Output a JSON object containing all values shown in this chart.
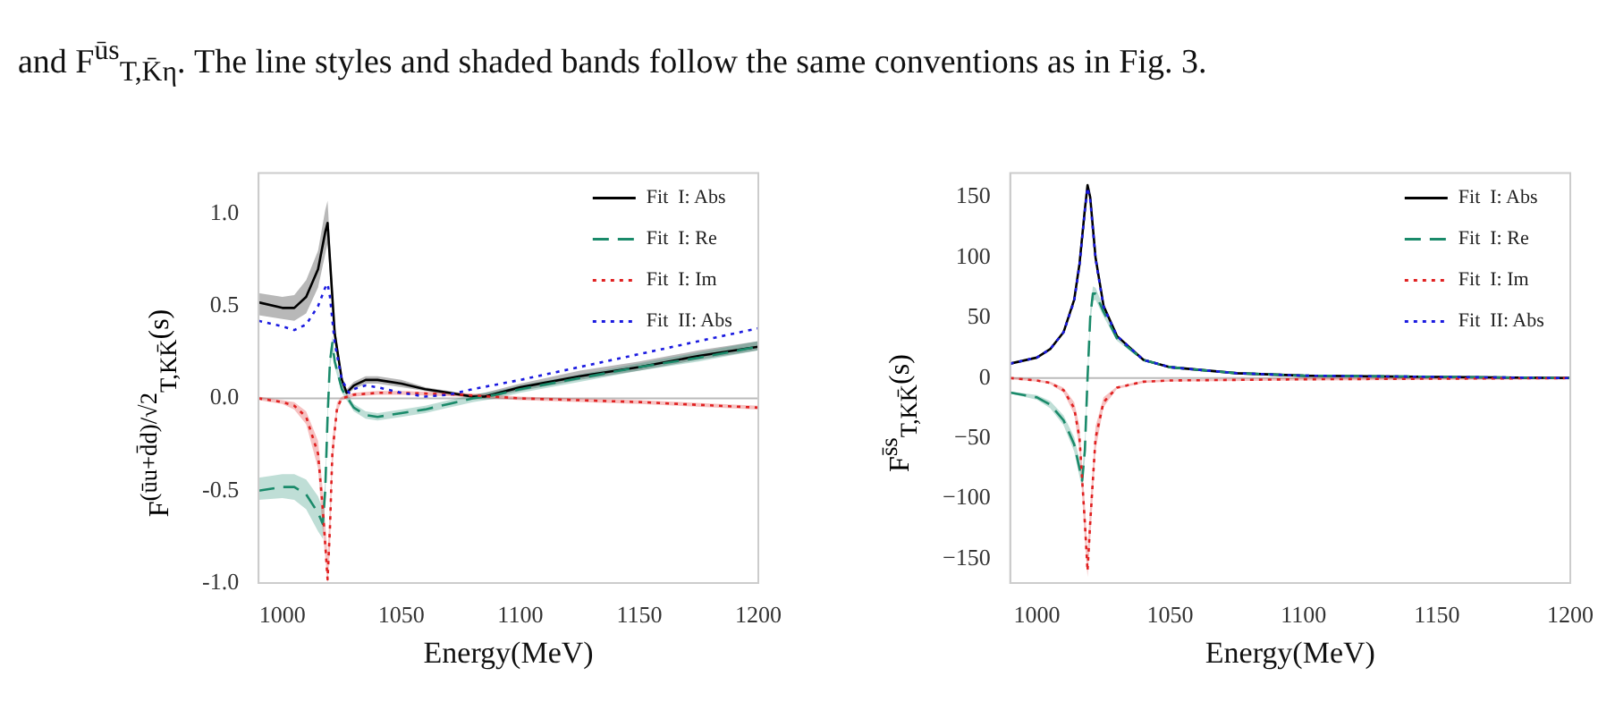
{
  "chart_data": [
    {
      "type": "line",
      "annotations": [
        "and F$^{ūs}$$_{T,K̄η}$. The line styles and shaded bands follow the same conventions as in Fig. 3."
      ],
      "xlabel": "Energy(MeV)",
      "ylabel": "F$^{(ūu+d̄d)/√2}$$_{T,KK̄}$(s)",
      "xlim": [
        990,
        1200
      ],
      "ylim": [
        -1.0,
        1.22
      ],
      "xticks": [
        1000,
        1050,
        1100,
        1150,
        1200
      ],
      "yticks": [
        {
          "value": -1,
          "label": "-1.0"
        },
        {
          "value": -0.5,
          "label": "-0.5"
        },
        {
          "value": 0,
          "label": "0.0"
        },
        {
          "value": 0.5,
          "label": "0.5"
        },
        {
          "value": 1,
          "label": "1.0"
        }
      ],
      "grid": false,
      "legend": "top right",
      "ref_lines": [
        {
          "axis": "y",
          "value": 0,
          "color": "#bbbbbb"
        }
      ],
      "series": [
        {
          "name": "Fit  I: Abs",
          "color": "#000000",
          "line_style": "solid",
          "x": [
            990,
            1000,
            1005,
            1010,
            1015,
            1018,
            1019,
            1020,
            1022,
            1025,
            1027,
            1030,
            1035,
            1040,
            1050,
            1060,
            1070,
            1080,
            1085,
            1100,
            1125,
            1150,
            1175,
            1200
          ],
          "values": [
            0.52,
            0.49,
            0.49,
            0.55,
            0.7,
            0.9,
            0.95,
            0.75,
            0.35,
            0.1,
            0.03,
            0.07,
            0.1,
            0.1,
            0.08,
            0.05,
            0.03,
            0.01,
            0.01,
            0.06,
            0.12,
            0.17,
            0.23,
            0.28
          ],
          "lower": [
            0.45,
            0.43,
            0.42,
            0.46,
            0.6,
            0.78,
            0.84,
            0.66,
            0.3,
            0.08,
            0.02,
            0.05,
            0.08,
            0.08,
            0.06,
            0.04,
            0.02,
            0.0,
            0.0,
            0.04,
            0.1,
            0.15,
            0.21,
            0.26
          ],
          "upper": [
            0.57,
            0.55,
            0.56,
            0.64,
            0.8,
            1.02,
            1.07,
            0.84,
            0.4,
            0.12,
            0.05,
            0.09,
            0.12,
            0.12,
            0.1,
            0.06,
            0.04,
            0.02,
            0.03,
            0.08,
            0.15,
            0.2,
            0.26,
            0.31
          ]
        },
        {
          "name": "Fit  I: Re",
          "color": "#1a8a6a",
          "line_style": "dashed",
          "x": [
            990,
            1000,
            1005,
            1010,
            1015,
            1017,
            1018,
            1019,
            1020,
            1021,
            1022,
            1025,
            1030,
            1035,
            1040,
            1050,
            1060,
            1070,
            1080,
            1090,
            1100,
            1125,
            1150,
            1175,
            1200
          ],
          "values": [
            -0.5,
            -0.48,
            -0.48,
            -0.52,
            -0.62,
            -0.68,
            -0.5,
            -0.1,
            0.2,
            0.3,
            0.2,
            0.05,
            -0.05,
            -0.09,
            -0.1,
            -0.08,
            -0.06,
            -0.03,
            0.0,
            0.02,
            0.05,
            0.11,
            0.17,
            0.22,
            0.28
          ],
          "lower": [
            -0.55,
            -0.54,
            -0.55,
            -0.6,
            -0.72,
            -0.76,
            -0.56,
            -0.14,
            0.16,
            0.26,
            0.17,
            0.03,
            -0.07,
            -0.11,
            -0.12,
            -0.1,
            -0.08,
            -0.05,
            -0.02,
            0.0,
            0.03,
            0.09,
            0.15,
            0.2,
            0.26
          ],
          "upper": [
            -0.43,
            -0.41,
            -0.41,
            -0.44,
            -0.53,
            -0.6,
            -0.44,
            -0.06,
            0.24,
            0.34,
            0.23,
            0.07,
            -0.03,
            -0.07,
            -0.08,
            -0.06,
            -0.04,
            -0.01,
            0.02,
            0.04,
            0.07,
            0.13,
            0.19,
            0.25,
            0.31
          ]
        },
        {
          "name": "Fit  I: Im",
          "color": "#e02020",
          "line_style": "dotted",
          "x": [
            990,
            1000,
            1005,
            1010,
            1015,
            1017,
            1019,
            1020,
            1021,
            1023,
            1025,
            1030,
            1040,
            1050,
            1075,
            1100,
            1150,
            1200
          ],
          "values": [
            0.0,
            -0.02,
            -0.04,
            -0.1,
            -0.3,
            -0.6,
            -0.98,
            -0.7,
            -0.3,
            -0.05,
            0.0,
            0.02,
            0.03,
            0.03,
            0.02,
            0.0,
            -0.02,
            -0.05
          ],
          "lower": [
            -0.01,
            -0.03,
            -0.06,
            -0.14,
            -0.38,
            -0.72,
            -1.0,
            -0.82,
            -0.38,
            -0.08,
            -0.01,
            0.01,
            0.02,
            0.02,
            0.01,
            -0.01,
            -0.03,
            -0.06
          ],
          "upper": [
            0.01,
            -0.01,
            -0.02,
            -0.07,
            -0.23,
            -0.5,
            -0.85,
            -0.58,
            -0.22,
            -0.02,
            0.01,
            0.03,
            0.04,
            0.04,
            0.03,
            0.01,
            -0.01,
            -0.04
          ]
        },
        {
          "name": "Fit  II: Abs",
          "color": "#1a1ae0",
          "line_style": "dotted",
          "x": [
            990,
            1000,
            1005,
            1010,
            1015,
            1018,
            1019,
            1020,
            1022,
            1025,
            1028,
            1030,
            1035,
            1040,
            1050,
            1060,
            1070,
            1080,
            1100,
            1125,
            1150,
            1175,
            1200
          ],
          "values": [
            0.42,
            0.39,
            0.37,
            0.4,
            0.5,
            0.6,
            0.62,
            0.55,
            0.3,
            0.1,
            0.03,
            0.05,
            0.07,
            0.06,
            0.03,
            0.01,
            0.02,
            0.05,
            0.1,
            0.17,
            0.24,
            0.31,
            0.38
          ]
        }
      ]
    },
    {
      "type": "line",
      "xlabel": "Energy(MeV)",
      "ylabel": "F$^{s̄s}$$_{T,KK̄}$(s)",
      "xlim": [
        990,
        1200
      ],
      "ylim": [
        -170,
        170
      ],
      "xticks": [
        1000,
        1050,
        1100,
        1150,
        1200
      ],
      "yticks": [
        {
          "value": -150,
          "label": "−150"
        },
        {
          "value": -100,
          "label": "−100"
        },
        {
          "value": -50,
          "label": "−50"
        },
        0,
        50,
        100,
        150
      ],
      "grid": false,
      "legend": "top right",
      "ref_lines": [
        {
          "axis": "y",
          "value": 0,
          "color": "#bbbbbb"
        }
      ],
      "series": [
        {
          "name": "Fit  I: Abs",
          "color": "#000000",
          "line_style": "solid",
          "x": [
            990,
            1000,
            1005,
            1010,
            1014,
            1016,
            1018,
            1019,
            1020,
            1022,
            1025,
            1030,
            1040,
            1050,
            1075,
            1100,
            1150,
            1200
          ],
          "values": [
            12,
            17,
            24,
            38,
            65,
            95,
            140,
            160,
            150,
            100,
            60,
            35,
            15,
            9,
            4,
            2,
            1,
            0
          ]
        },
        {
          "name": "Fit  I: Re",
          "color": "#1a8a6a",
          "line_style": "dashed",
          "x": [
            990,
            1000,
            1005,
            1010,
            1014,
            1016,
            1017,
            1018,
            1019,
            1020,
            1021,
            1022,
            1025,
            1030,
            1040,
            1050,
            1075,
            1100,
            1150,
            1200
          ],
          "values": [
            -12,
            -16,
            -22,
            -35,
            -55,
            -75,
            -85,
            -60,
            0,
            50,
            70,
            70,
            55,
            33,
            15,
            9,
            4,
            2,
            1,
            0
          ],
          "lower": [
            -13,
            -18,
            -25,
            -39,
            -61,
            -82,
            -92,
            -68,
            -6,
            44,
            64,
            65,
            51,
            31,
            14,
            8,
            3,
            1,
            0,
            -1
          ],
          "upper": [
            -11,
            -14,
            -19,
            -31,
            -49,
            -68,
            -78,
            -52,
            6,
            56,
            76,
            75,
            59,
            35,
            16,
            10,
            5,
            3,
            2,
            1
          ]
        },
        {
          "name": "Fit  I: Im",
          "color": "#e02020",
          "line_style": "dotted",
          "x": [
            990,
            1000,
            1005,
            1010,
            1014,
            1016,
            1018,
            1019,
            1020,
            1022,
            1025,
            1030,
            1040,
            1050,
            1100,
            1200
          ],
          "values": [
            0,
            -2,
            -4,
            -10,
            -25,
            -50,
            -120,
            -160,
            -120,
            -50,
            -20,
            -8,
            -3,
            -2,
            -1,
            0
          ],
          "lower": [
            -1,
            -3,
            -5,
            -12,
            -30,
            -60,
            -135,
            -165,
            -135,
            -60,
            -24,
            -9,
            -4,
            -3,
            -2,
            -1
          ],
          "upper": [
            1,
            -1,
            -3,
            -8,
            -20,
            -40,
            -105,
            -145,
            -105,
            -40,
            -16,
            -7,
            -2,
            -1,
            0,
            1
          ]
        },
        {
          "name": "Fit  II: Abs",
          "color": "#1a1ae0",
          "line_style": "dotted",
          "x": [
            990,
            1000,
            1005,
            1010,
            1014,
            1016,
            1018,
            1019,
            1020,
            1022,
            1025,
            1030,
            1040,
            1050,
            1075,
            1100,
            1150,
            1200
          ],
          "values": [
            12,
            17,
            24,
            38,
            64,
            94,
            139,
            158,
            148,
            99,
            59,
            35,
            15,
            9,
            4,
            2,
            1,
            0
          ]
        }
      ]
    }
  ]
}
